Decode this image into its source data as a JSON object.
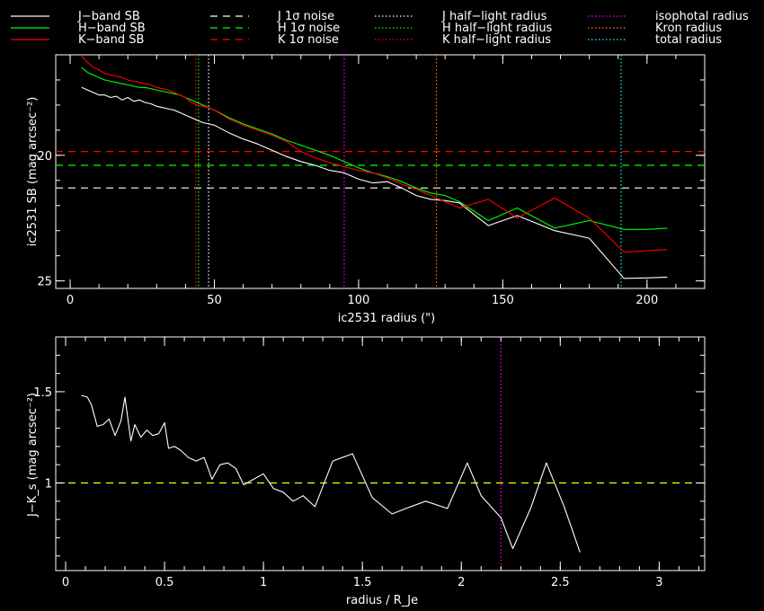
{
  "legend": [
    {
      "label": "J−band SB",
      "color": "#ffffff",
      "dash": "solid"
    },
    {
      "label": "H−band SB",
      "color": "#00ff00",
      "dash": "solid"
    },
    {
      "label": "K−band SB",
      "color": "#ff0000",
      "dash": "solid"
    },
    {
      "label": "J 1σ noise",
      "color": "#ffffff",
      "dash": "dashed"
    },
    {
      "label": "H 1σ noise",
      "color": "#00ff00",
      "dash": "dashed"
    },
    {
      "label": "K 1σ noise",
      "color": "#ff0000",
      "dash": "dashed"
    },
    {
      "label": "J half−light radius",
      "color": "#ffffff",
      "dash": "dotted"
    },
    {
      "label": "H half−light radius",
      "color": "#00ff00",
      "dash": "dotted"
    },
    {
      "label": "K half−light radius",
      "color": "#ff0000",
      "dash": "dotted"
    },
    {
      "label": "isophotal radius",
      "color": "#ff00ff",
      "dash": "dotted"
    },
    {
      "label": "Kron radius",
      "color": "#ff8000",
      "dash": "dotted"
    },
    {
      "label": "total radius",
      "color": "#00ffff",
      "dash": "dotted"
    }
  ],
  "chart_data": [
    {
      "type": "line",
      "xlabel": "ic2531 radius (\")",
      "ylabel": "ic2531 SB (mag arcsec⁻²)",
      "xlim": [
        -5,
        220
      ],
      "ylim": [
        25.3,
        16.0
      ],
      "y_inverted": true,
      "xticks": [
        0,
        50,
        100,
        150,
        200
      ],
      "yticks": [
        20,
        25
      ],
      "series": [
        {
          "name": "J−band SB",
          "color": "#ffffff",
          "style": "solid",
          "x": [
            4,
            6,
            8,
            10,
            12,
            14,
            16,
            18,
            20,
            22,
            24,
            26,
            28,
            30,
            32,
            34,
            36,
            38,
            40,
            42,
            44,
            46,
            48,
            50,
            55,
            60,
            65,
            70,
            75,
            80,
            85,
            90,
            95,
            100,
            105,
            110,
            115,
            120,
            125,
            130,
            135,
            145,
            155,
            168,
            180,
            192,
            200,
            207
          ],
          "y": [
            17.3,
            17.4,
            17.5,
            17.6,
            17.6,
            17.7,
            17.65,
            17.8,
            17.7,
            17.85,
            17.8,
            17.9,
            17.95,
            18.05,
            18.1,
            18.15,
            18.2,
            18.3,
            18.4,
            18.5,
            18.6,
            18.7,
            18.75,
            18.8,
            19.1,
            19.35,
            19.55,
            19.8,
            20.05,
            20.25,
            20.4,
            20.6,
            20.7,
            20.95,
            21.1,
            21.05,
            21.3,
            21.6,
            21.75,
            21.8,
            21.9,
            22.8,
            22.4,
            23.0,
            23.3,
            24.9,
            24.88,
            24.85
          ]
        },
        {
          "name": "H−band SB",
          "color": "#00ff00",
          "style": "solid",
          "x": [
            4,
            6,
            8,
            10,
            12,
            14,
            16,
            18,
            20,
            22,
            24,
            26,
            28,
            30,
            32,
            34,
            36,
            38,
            40,
            42,
            44,
            46,
            48,
            50,
            55,
            60,
            65,
            70,
            75,
            80,
            85,
            90,
            95,
            100,
            105,
            110,
            115,
            120,
            125,
            130,
            135,
            145,
            155,
            168,
            180,
            192,
            200,
            207
          ],
          "y": [
            16.5,
            16.7,
            16.8,
            16.9,
            17.0,
            17.05,
            17.1,
            17.15,
            17.2,
            17.25,
            17.3,
            17.3,
            17.35,
            17.4,
            17.45,
            17.5,
            17.55,
            17.6,
            17.7,
            17.8,
            17.9,
            18.0,
            18.1,
            18.2,
            18.5,
            18.75,
            18.95,
            19.15,
            19.4,
            19.6,
            19.8,
            20.0,
            20.25,
            20.5,
            20.7,
            20.85,
            21.05,
            21.3,
            21.5,
            21.6,
            21.85,
            22.6,
            22.1,
            22.9,
            22.6,
            22.95,
            22.95,
            22.9
          ]
        },
        {
          "name": "K−band SB",
          "color": "#ff0000",
          "style": "solid",
          "x": [
            4,
            6,
            8,
            10,
            12,
            14,
            16,
            18,
            20,
            22,
            24,
            26,
            28,
            30,
            32,
            34,
            36,
            38,
            40,
            42,
            44,
            46,
            48,
            50,
            55,
            60,
            65,
            70,
            75,
            80,
            85,
            90,
            95,
            100,
            105,
            110,
            115,
            120,
            125,
            130,
            135,
            145,
            155,
            168,
            180,
            192,
            200,
            207
          ],
          "y": [
            16.05,
            16.3,
            16.5,
            16.6,
            16.75,
            16.8,
            16.85,
            16.9,
            17.0,
            17.05,
            17.1,
            17.15,
            17.2,
            17.3,
            17.35,
            17.4,
            17.5,
            17.6,
            17.7,
            17.9,
            18.0,
            18.05,
            18.1,
            18.2,
            18.55,
            18.8,
            19.0,
            19.2,
            19.45,
            19.85,
            20.1,
            20.3,
            20.45,
            20.6,
            20.7,
            20.9,
            21.15,
            21.35,
            21.6,
            21.85,
            22.1,
            21.75,
            22.5,
            21.7,
            22.5,
            23.85,
            23.8,
            23.75
          ]
        },
        {
          "name": "J 1σ noise",
          "color": "#ffffff",
          "style": "dashed",
          "hline": 21.3
        },
        {
          "name": "H 1σ noise",
          "color": "#00ff00",
          "style": "dashed",
          "hline": 20.4
        },
        {
          "name": "K 1σ noise",
          "color": "#ff0000",
          "style": "dashed",
          "hline": 19.85
        },
        {
          "name": "J half−light radius",
          "color": "#ffffff",
          "style": "dotted",
          "vline": 48
        },
        {
          "name": "H half−light radius",
          "color": "#00ff00",
          "style": "dotted",
          "vline": 44.5
        },
        {
          "name": "K half−light radius",
          "color": "#ff0000",
          "style": "dotted",
          "vline": 43.5
        },
        {
          "name": "isophotal radius",
          "color": "#ff00ff",
          "style": "dotted",
          "vline": 95
        },
        {
          "name": "Kron radius",
          "color": "#ff8000",
          "style": "dotted",
          "vline": 127
        },
        {
          "name": "total radius",
          "color": "#00ffff",
          "style": "dotted",
          "vline": 191
        }
      ]
    },
    {
      "type": "line",
      "xlabel": "radius / R_Je",
      "ylabel": "J−K_s (mag arcsec⁻²)",
      "xlim": [
        -0.05,
        3.23
      ],
      "ylim": [
        0.52,
        1.8
      ],
      "xticks": [
        0,
        0.5,
        1,
        1.5,
        2,
        2.5,
        3
      ],
      "yticks": [
        1,
        1.5
      ],
      "series": [
        {
          "name": "J−K_s",
          "color": "#ffffff",
          "style": "solid",
          "x": [
            0.08,
            0.11,
            0.13,
            0.16,
            0.19,
            0.22,
            0.25,
            0.28,
            0.3,
            0.33,
            0.35,
            0.38,
            0.41,
            0.44,
            0.47,
            0.5,
            0.52,
            0.55,
            0.58,
            0.62,
            0.66,
            0.7,
            0.74,
            0.78,
            0.82,
            0.86,
            0.9,
            0.95,
            1.0,
            1.05,
            1.1,
            1.15,
            1.2,
            1.26,
            1.35,
            1.45,
            1.55,
            1.65,
            1.72,
            1.82,
            1.93,
            2.03,
            2.1,
            2.2,
            2.26,
            2.35,
            2.43,
            2.52,
            2.6
          ],
          "y": [
            1.48,
            1.47,
            1.43,
            1.31,
            1.32,
            1.35,
            1.26,
            1.34,
            1.47,
            1.23,
            1.32,
            1.25,
            1.29,
            1.26,
            1.27,
            1.33,
            1.19,
            1.2,
            1.18,
            1.14,
            1.12,
            1.14,
            1.02,
            1.1,
            1.11,
            1.08,
            0.99,
            1.02,
            1.05,
            0.97,
            0.95,
            0.9,
            0.93,
            0.87,
            1.12,
            1.16,
            0.92,
            0.83,
            0.86,
            0.9,
            0.86,
            1.11,
            0.93,
            0.81,
            0.64,
            0.86,
            1.11,
            0.87,
            0.62
          ]
        },
        {
          "name": "reference",
          "color": "#ffff00",
          "style": "dashed",
          "hline": 1.0
        },
        {
          "name": "isophotal",
          "color": "#ff00ff",
          "style": "dotted",
          "vline": 2.2
        }
      ]
    }
  ]
}
